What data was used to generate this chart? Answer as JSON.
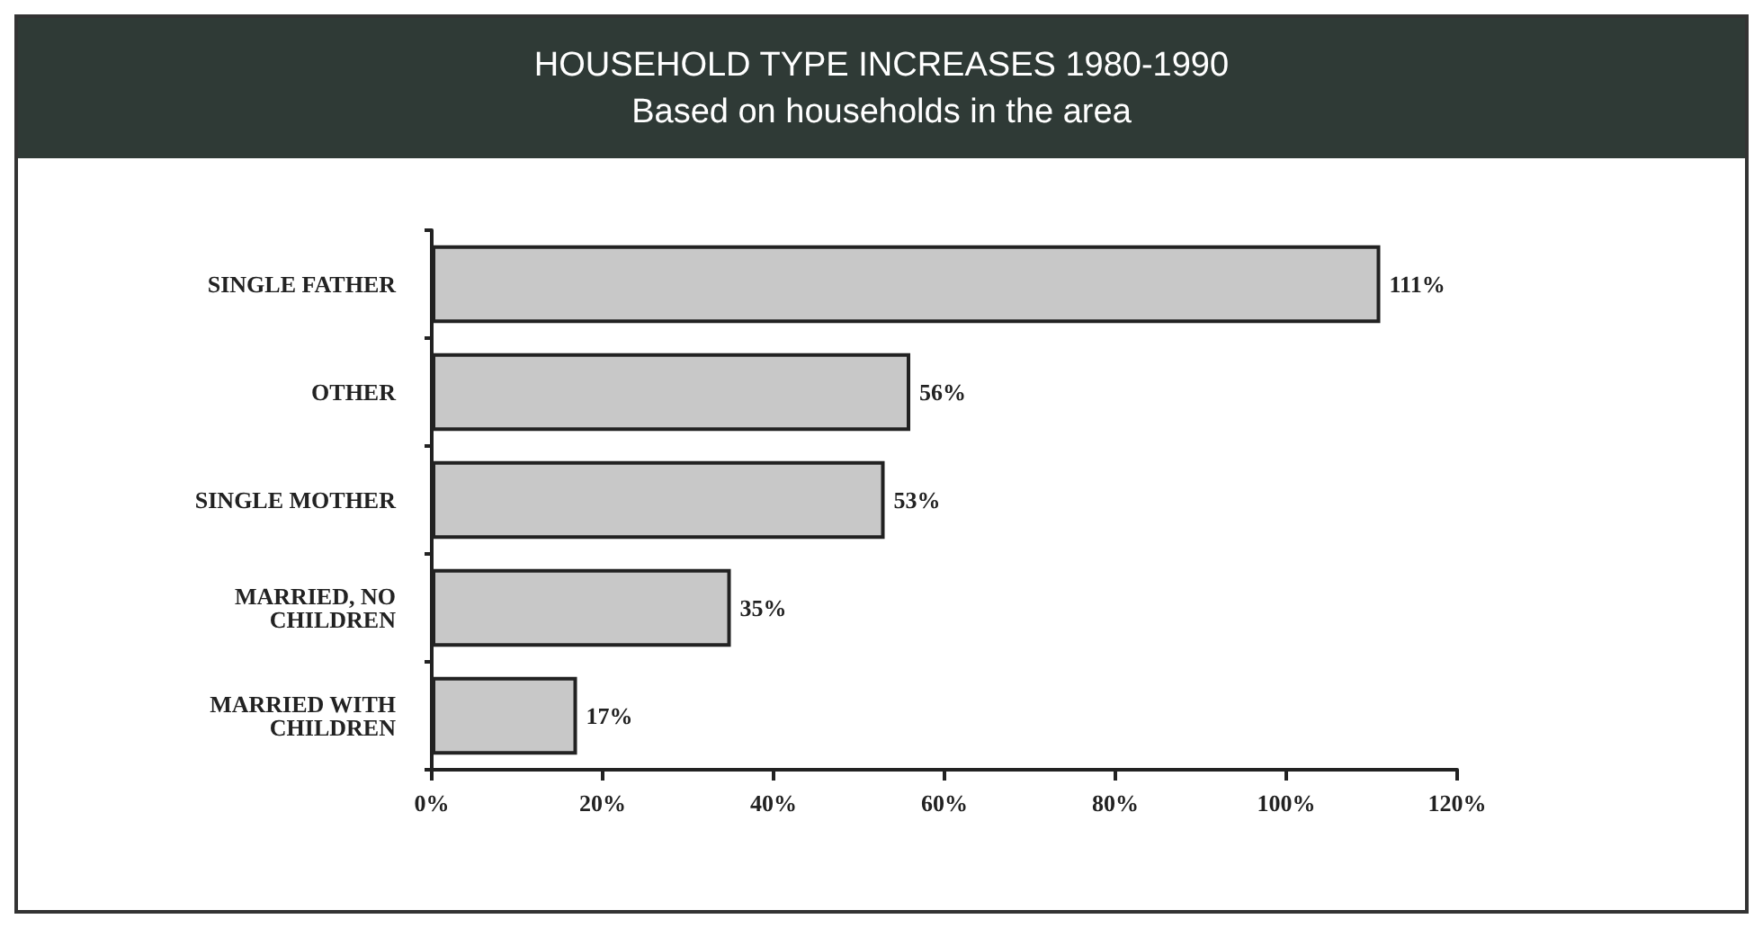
{
  "chart_data": {
    "type": "bar",
    "orientation": "horizontal",
    "title": "HOUSEHOLD TYPE INCREASES 1980-1990",
    "subtitle": "Based on households in the area",
    "categories": [
      "SINGLE FATHER",
      "OTHER",
      "SINGLE MOTHER",
      "MARRIED, NO\nCHILDREN",
      "MARRIED WITH\nCHILDREN"
    ],
    "values": [
      111,
      56,
      53,
      35,
      17
    ],
    "color": "#c8c8c8",
    "data_labels": true,
    "value_labels": [
      "111%",
      "56%",
      "53%",
      "35%",
      "17%"
    ],
    "xlim": [
      0,
      120
    ],
    "xticks": [
      {
        "value": 0,
        "label": "0%"
      },
      {
        "value": 20,
        "label": "20%"
      },
      {
        "value": 40,
        "label": "40%"
      },
      {
        "value": 60,
        "label": "60%"
      },
      {
        "value": 80,
        "label": "80%"
      },
      {
        "value": 100,
        "label": "100%"
      },
      {
        "value": 120,
        "label": "120%"
      }
    ],
    "grid": false
  }
}
